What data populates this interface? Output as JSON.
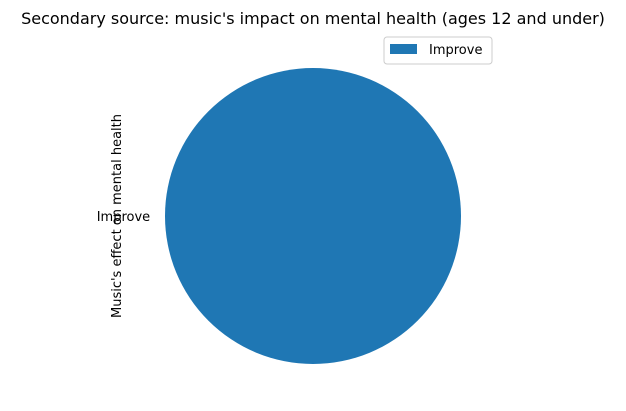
{
  "chart_data": {
    "type": "pie",
    "title": "Secondary source: music's impact on mental health (ages 12 and under)",
    "ylabel": "Music's effect on mental health",
    "xlabel": "",
    "categories": [
      "Improve"
    ],
    "values": [
      1
    ],
    "colors": [
      "#1f77b4"
    ],
    "legend": {
      "placement": "upper-right",
      "entries": [
        "Improve"
      ]
    }
  }
}
